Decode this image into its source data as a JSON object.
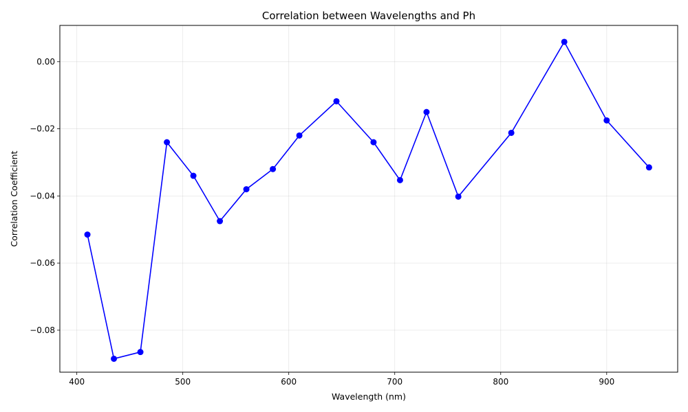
{
  "chart_data": {
    "type": "line",
    "title": "Correlation between Wavelengths and Ph",
    "xlabel": "Wavelength (nm)",
    "ylabel": "Correlation Coefficient",
    "xlim": [
      384,
      967
    ],
    "ylim": [
      -0.0925,
      0.0108
    ],
    "x_ticks": [
      400,
      500,
      600,
      700,
      800,
      900
    ],
    "y_ticks": [
      0.0,
      -0.02,
      -0.04,
      -0.06,
      -0.08
    ],
    "x_tick_labels": [
      "400",
      "500",
      "600",
      "700",
      "800",
      "900"
    ],
    "y_tick_labels": [
      "0.00",
      "−0.02",
      "−0.04",
      "−0.06",
      "−0.08"
    ],
    "grid": true,
    "series": [
      {
        "color": "#0000ff",
        "marker": "circle",
        "x": [
          410,
          435,
          460,
          485,
          510,
          535,
          560,
          585,
          610,
          645,
          680,
          705,
          730,
          760,
          810,
          860,
          900,
          940
        ],
        "y": [
          -0.0515,
          -0.0885,
          -0.0865,
          -0.024,
          -0.034,
          -0.0475,
          -0.038,
          -0.032,
          -0.022,
          -0.0118,
          -0.024,
          -0.0353,
          -0.015,
          -0.0402,
          -0.0212,
          0.0059,
          -0.0175,
          -0.0315
        ]
      }
    ]
  }
}
